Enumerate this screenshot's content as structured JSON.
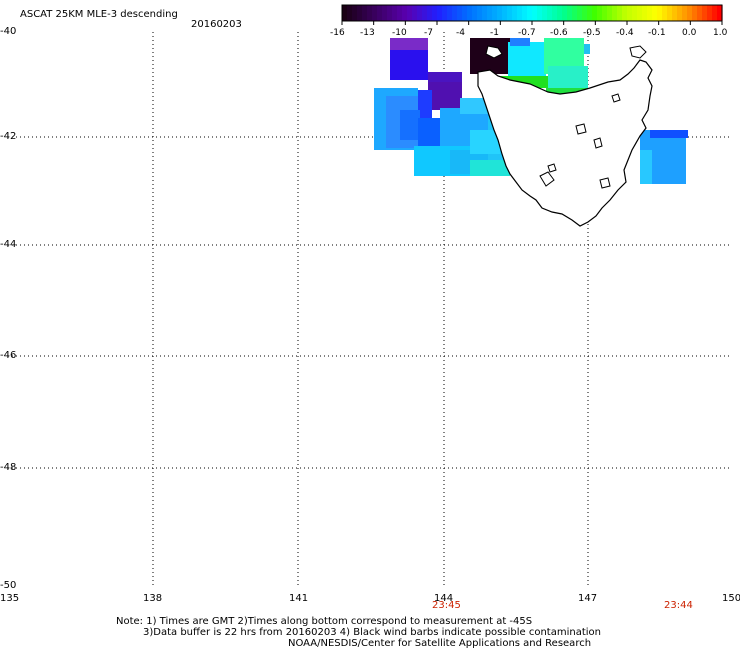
{
  "header": {
    "title": "ASCAT 25KM MLE-3 descending",
    "date": "20160203"
  },
  "colorbar": {
    "labels": [
      "-16",
      "-13",
      "-10",
      "-7",
      "-4",
      "-1",
      "-0.7",
      "-0.6",
      "-0.5",
      "-0.4",
      "-0.1",
      "0.0",
      "1.0"
    ]
  },
  "map": {
    "lat_labels": [
      "-40",
      "-42",
      "-44",
      "-46",
      "-48",
      "-50"
    ],
    "lon_labels": [
      "135",
      "138",
      "141",
      "144",
      "147",
      "150"
    ],
    "lat_range": [
      -50,
      -40
    ],
    "lon_range": [
      135,
      150
    ],
    "grid": true,
    "time_labels": [
      {
        "text": "23:45",
        "lon": 144
      },
      {
        "text": "23:44",
        "lon": 149
      }
    ]
  },
  "notes": {
    "line1": "Note: 1) Times are GMT 2)Times along bottom correspond to measurement at -45S",
    "line2": "3)Data buffer is 22 hrs from 20160203 4) Black wind barbs indicate possible contamination",
    "line3": "NOAA/NESDIS/Center for Satellite Applications and Research"
  },
  "colors": {
    "palette": [
      "#1a0014",
      "#3a0060",
      "#5a00b0",
      "#2020ff",
      "#0070ff",
      "#00b4ff",
      "#00ffff",
      "#00ff90",
      "#40ff00",
      "#c0ff00",
      "#ffff00",
      "#ff9000",
      "#ff0000"
    ],
    "coast": "#000000",
    "grid": "#000000",
    "time_label": "#cc2200"
  }
}
